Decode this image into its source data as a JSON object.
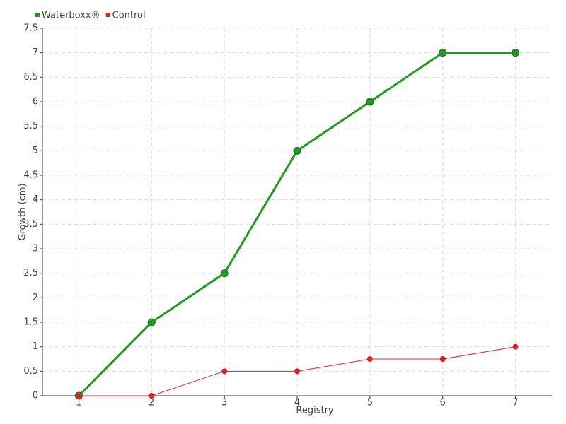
{
  "chart_data": {
    "type": "line",
    "x": [
      1,
      2,
      3,
      4,
      5,
      6,
      7
    ],
    "series": [
      {
        "name": "Waterboxx®",
        "color": "#229922",
        "values": [
          0,
          1.5,
          2.5,
          5,
          6,
          7,
          7
        ]
      },
      {
        "name": "Control",
        "color": "#e02030",
        "values": [
          0,
          0,
          0.5,
          0.5,
          0.75,
          0.75,
          1
        ]
      }
    ],
    "x_label": "Registry",
    "y_label": "Growth (cm)",
    "xlim": [
      0.5,
      7.5
    ],
    "xticks": [
      1,
      2,
      3,
      4,
      5,
      6,
      7
    ],
    "ylim": [
      0,
      7.5
    ],
    "yticks": [
      0,
      0.5,
      1,
      1.5,
      2,
      2.5,
      3,
      3.5,
      4,
      4.5,
      5,
      5.5,
      6,
      6.5,
      7,
      7.5
    ],
    "grid": true,
    "legend": "top-left"
  }
}
